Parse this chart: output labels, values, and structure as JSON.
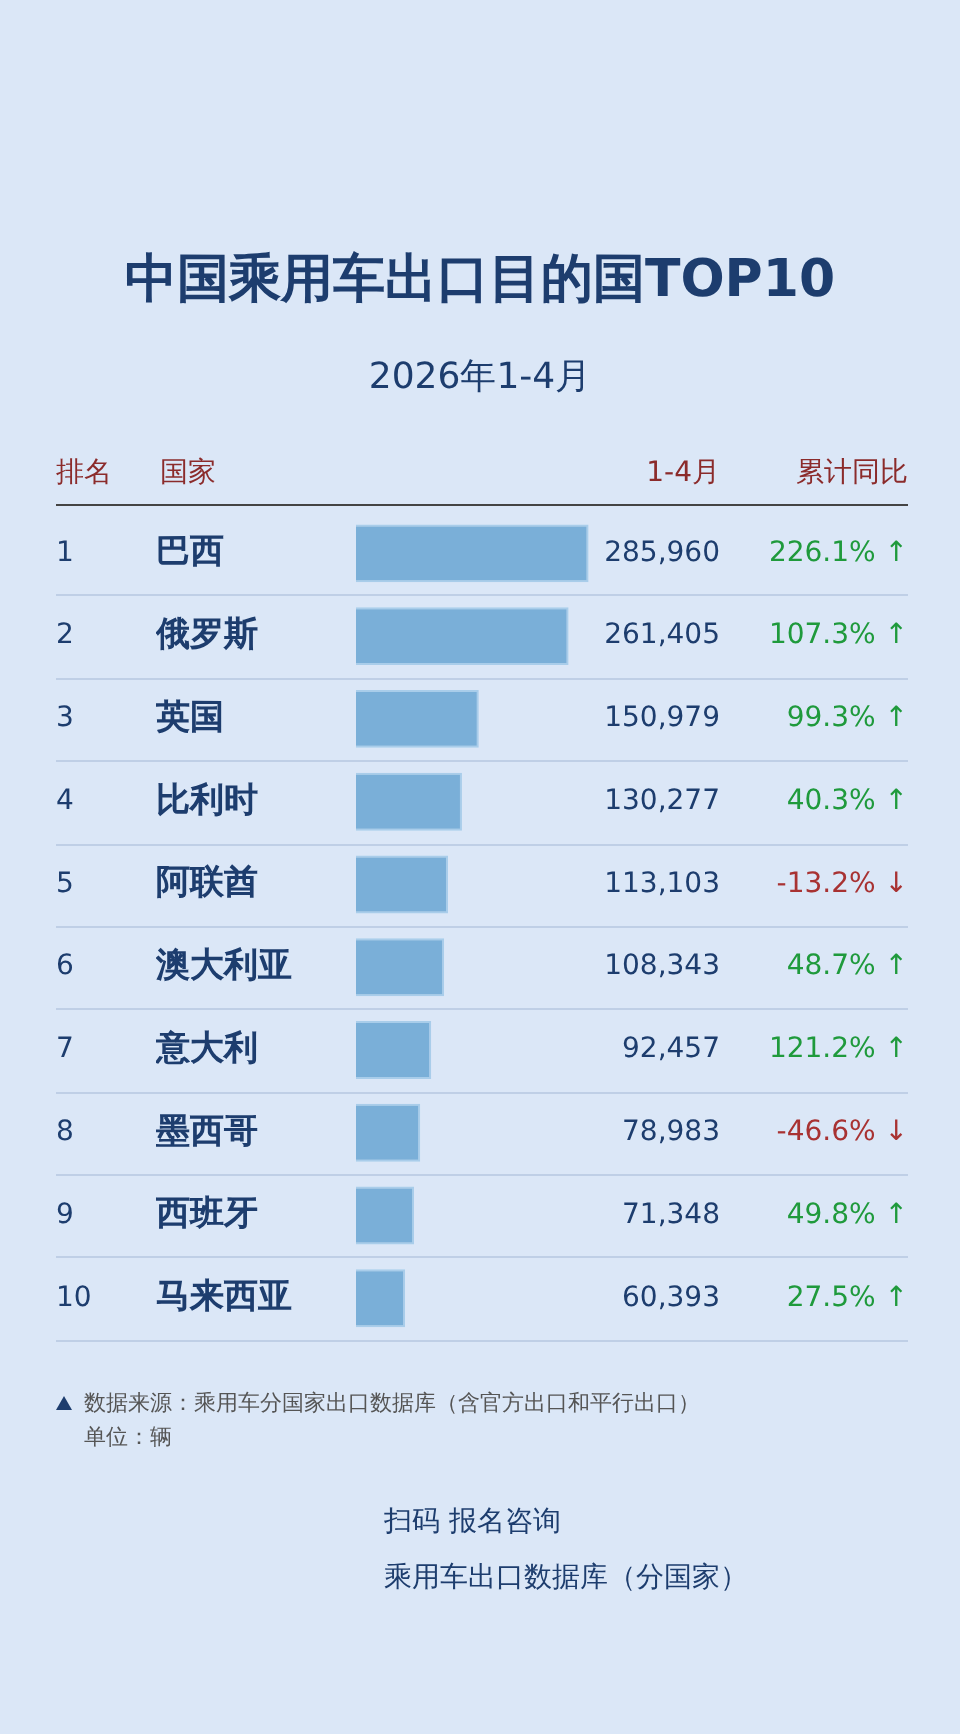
{
  "chart_data": {
    "type": "bar",
    "orientation": "horizontal",
    "title": "中国乘用车出口目的国TOP10",
    "subtitle": "2026年1-4月",
    "xlabel": "1-4月",
    "ylabel": "国家",
    "categories": [
      "巴西",
      "俄罗斯",
      "英国",
      "比利时",
      "阿联酋",
      "澳大利亚",
      "意大利",
      "墨西哥",
      "西班牙",
      "马来西亚"
    ],
    "values": [
      285960,
      261405,
      150979,
      130277,
      113103,
      108343,
      92457,
      78983,
      71348,
      60393
    ],
    "value_labels": [
      "285,960",
      "261,405",
      "150,979",
      "130,277",
      "113,103",
      "108,343",
      "92,457",
      "78,983",
      "71,348",
      "60,393"
    ],
    "color": "#7aafd8",
    "legend": false,
    "annotations": [
      "排名",
      "累计同比",
      "数据来源：乘用车分国家出口数据库（含官方出口和平行出口）",
      "单位：辆",
      "扫码 报名咨询",
      "乘用车出口数据库（分国家）",
      "1",
      "226.1% ↑",
      "2",
      "107.3% ↑",
      "3",
      "99.3% ↑",
      "4",
      "40.3% ↑",
      "5",
      "-13.2% ↓",
      "6",
      "48.7% ↑",
      "7",
      "121.2% ↑",
      "8",
      "-46.6% ↓",
      "9",
      "49.8% ↑",
      "10",
      "27.5% ↑"
    ]
  }
}
